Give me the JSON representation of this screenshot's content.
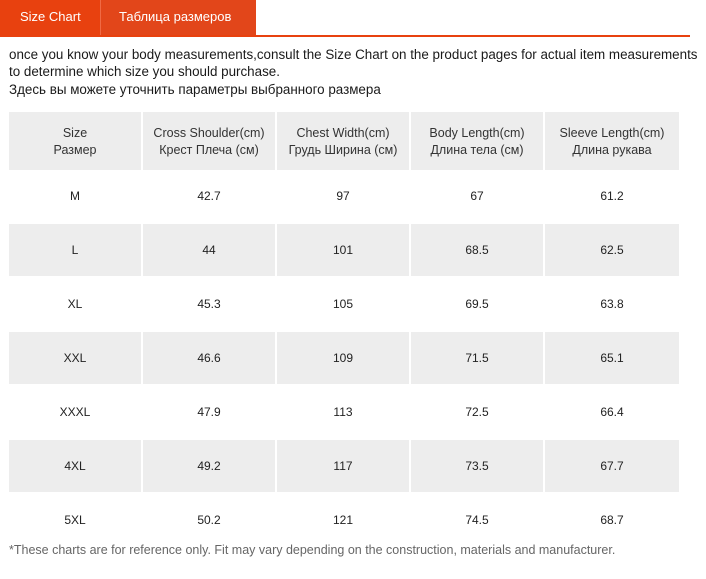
{
  "tabs": [
    {
      "label": "Size Chart"
    },
    {
      "label": "Таблица размеров"
    }
  ],
  "intro": {
    "en": "once you know your body measurements,consult the Size Chart on the product pages for actual item measurements to determine which size you should purchase.",
    "ru": "Здесь вы можете уточнить параметры выбранного размера"
  },
  "table": {
    "headers": [
      {
        "en": "Size",
        "ru": "Размер"
      },
      {
        "en": "Cross Shoulder(cm)",
        "ru": "Крест Плеча (см)"
      },
      {
        "en": "Chest Width(cm)",
        "ru": "Грудь Ширина (см)"
      },
      {
        "en": "Body Length(cm)",
        "ru": "Длина тела (см)"
      },
      {
        "en": "Sleeve Length(cm)",
        "ru": "Длина рукава"
      }
    ],
    "rows": [
      [
        "M",
        "42.7",
        "97",
        "67",
        "61.2"
      ],
      [
        "L",
        "44",
        "101",
        "68.5",
        "62.5"
      ],
      [
        "XL",
        "45.3",
        "105",
        "69.5",
        "63.8"
      ],
      [
        "XXL",
        "46.6",
        "109",
        "71.5",
        "65.1"
      ],
      [
        "XXXL",
        "47.9",
        "113",
        "72.5",
        "66.4"
      ],
      [
        "4XL",
        "49.2",
        "117",
        "73.5",
        "67.7"
      ],
      [
        "5XL",
        "50.2",
        "121",
        "74.5",
        "68.7"
      ]
    ]
  },
  "footnote": "*These charts are for reference only. Fit may vary depending on the construction, materials and manufacturer."
}
